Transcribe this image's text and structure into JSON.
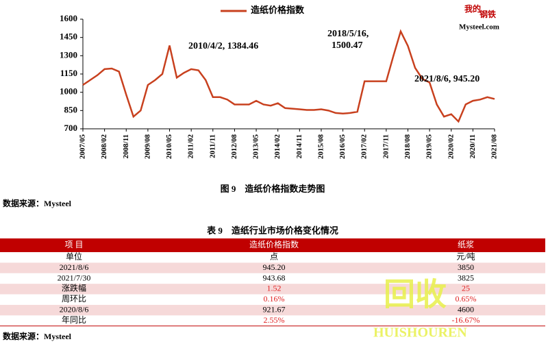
{
  "chart_data": {
    "type": "line",
    "ylim": [
      700,
      1600
    ],
    "yticks": [
      700,
      850,
      1000,
      1150,
      1300,
      1450,
      1600
    ],
    "categories": [
      "2007/05",
      null,
      null,
      "2008/02",
      null,
      null,
      "2008/11",
      null,
      null,
      "2009/08",
      null,
      null,
      "2010/05",
      null,
      null,
      "2011/02",
      null,
      null,
      "2011/11",
      null,
      null,
      "2012/08",
      null,
      null,
      "2013/05",
      null,
      null,
      "2014/02",
      null,
      null,
      "2014/11",
      null,
      null,
      "2015/08",
      null,
      null,
      "2016/05",
      null,
      null,
      "2017/02",
      null,
      null,
      "2017/11",
      null,
      null,
      "2018/08",
      null,
      null,
      "2019/05",
      null,
      null,
      "2020/02",
      null,
      null,
      "2020/11",
      null,
      null,
      "2021/08"
    ],
    "series": [
      {
        "name": "造纸价格指数",
        "color": "#c8401e",
        "values": [
          1060,
          1100,
          1140,
          1190,
          1195,
          1170,
          980,
          800,
          850,
          1060,
          1100,
          1150,
          1384,
          1120,
          1160,
          1190,
          1180,
          1100,
          960,
          960,
          940,
          900,
          900,
          900,
          930,
          900,
          890,
          910,
          870,
          865,
          860,
          855,
          855,
          860,
          850,
          830,
          825,
          830,
          840,
          1090,
          1090,
          1090,
          1090,
          1300,
          1500,
          1380,
          1200,
          1110,
          1080,
          900,
          800,
          820,
          760,
          900,
          930,
          940,
          960,
          945
        ]
      }
    ],
    "annotations": [
      "2010/4/2, 1384.46",
      "2018/5/16,",
      "1500.47",
      "2021/8/6, 945.20"
    ],
    "logo": [
      "我的",
      "钢铁",
      "Mysteel.com"
    ]
  },
  "figure_caption": "图 9　造纸价格指数走势图",
  "source_1": "数据来源：Mysteel",
  "table": {
    "title": "表 9　造纸行业市场价格变化情况",
    "header": [
      "项 目",
      "造纸价格指数",
      "纸浆"
    ],
    "rows": [
      [
        "单位",
        "点",
        "元/吨"
      ],
      [
        "2021/8/6",
        "945.20",
        "3850"
      ],
      [
        "2021/7/30",
        "943.68",
        "3825"
      ],
      [
        "涨跌幅",
        "1.52",
        "25"
      ],
      [
        "周环比",
        "0.16%",
        "0.65%"
      ],
      [
        "2020/8/6",
        "921.67",
        "4600"
      ],
      [
        "年同比",
        "2.55%",
        "-16.67%"
      ]
    ],
    "highlight": {
      "rows": [
        3,
        4,
        6
      ],
      "color": "#e02020"
    },
    "header_color": "#c00000",
    "stripe_color": "#f6d9d9"
  },
  "source_2": "数据来源：Mysteel",
  "watermark": [
    "回收",
    "HUISHOUREN"
  ]
}
